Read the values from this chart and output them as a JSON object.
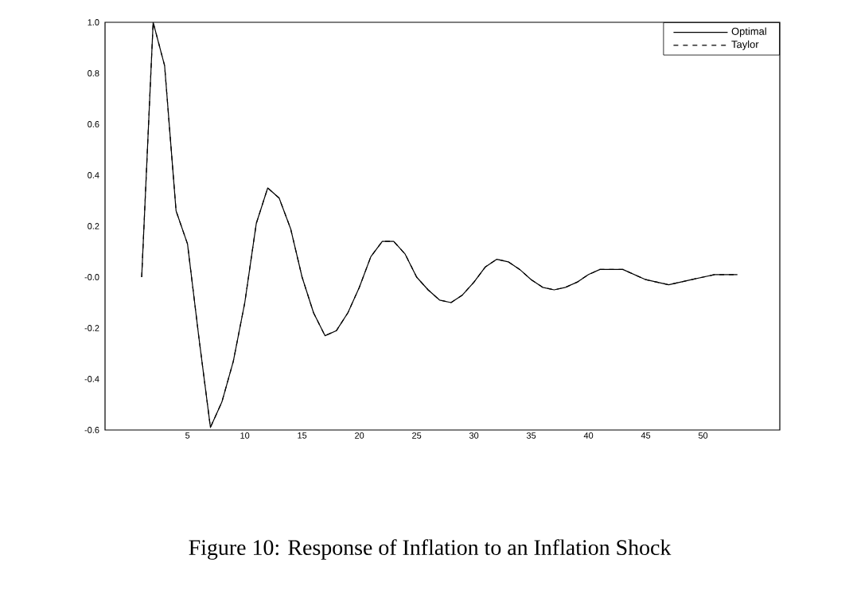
{
  "chart_data": {
    "type": "line",
    "x": [
      1,
      2,
      3,
      4,
      5,
      6,
      7,
      8,
      9,
      10,
      11,
      12,
      13,
      14,
      15,
      16,
      17,
      18,
      19,
      20,
      21,
      22,
      23,
      24,
      25,
      26,
      27,
      28,
      29,
      30,
      31,
      32,
      33,
      34,
      35,
      36,
      37,
      38,
      39,
      40,
      41,
      42,
      43,
      44,
      45,
      46,
      47,
      48,
      49,
      50,
      51,
      52,
      53
    ],
    "series": [
      {
        "name": "Optimal",
        "color": "#000000",
        "line_style": "solid",
        "values": [
          0.0,
          1.0,
          0.83,
          0.26,
          0.13,
          -0.24,
          -0.59,
          -0.49,
          -0.33,
          -0.1,
          0.21,
          0.35,
          0.31,
          0.19,
          0.0,
          -0.14,
          -0.23,
          -0.21,
          -0.14,
          -0.04,
          0.08,
          0.14,
          0.14,
          0.09,
          0.0,
          -0.05,
          -0.09,
          -0.1,
          -0.07,
          -0.02,
          0.04,
          0.07,
          0.06,
          0.03,
          -0.01,
          -0.04,
          -0.05,
          -0.04,
          -0.02,
          0.01,
          0.03,
          0.03,
          0.03,
          0.01,
          -0.01,
          -0.02,
          -0.03,
          -0.02,
          -0.01,
          0.0,
          0.01,
          0.01,
          0.01
        ]
      },
      {
        "name": "Taylor",
        "color": "#000000",
        "line_style": "dashed",
        "values": [
          0.0,
          1.0,
          0.83,
          0.26,
          0.13,
          -0.24,
          -0.59,
          -0.49,
          -0.33,
          -0.1,
          0.21,
          0.35,
          0.31,
          0.19,
          0.0,
          -0.14,
          -0.23,
          -0.21,
          -0.14,
          -0.04,
          0.08,
          0.14,
          0.14,
          0.09,
          0.0,
          -0.05,
          -0.09,
          -0.1,
          -0.07,
          -0.02,
          0.04,
          0.07,
          0.06,
          0.03,
          -0.01,
          -0.04,
          -0.05,
          -0.04,
          -0.02,
          0.01,
          0.03,
          0.03,
          0.03,
          0.01,
          -0.01,
          -0.02,
          -0.03,
          -0.02,
          -0.01,
          0.0,
          0.01,
          0.01,
          0.01
        ]
      }
    ],
    "xlim": [
      -2.2,
      56.7
    ],
    "ylim": [
      -0.6,
      1.0
    ],
    "xticks": [
      5,
      10,
      15,
      20,
      25,
      30,
      35,
      40,
      45,
      50
    ],
    "yticks": [
      {
        "value": -0.6,
        "label": "-0.6"
      },
      {
        "value": -0.4,
        "label": "-0.4"
      },
      {
        "value": -0.2,
        "label": "-0.2"
      },
      {
        "value": 0,
        "label": "-0.0"
      },
      {
        "value": 0.2,
        "label": "0.2"
      },
      {
        "value": 0.4,
        "label": "0.4"
      },
      {
        "value": 0.6,
        "label": "0.6"
      },
      {
        "value": 0.8,
        "label": "0.8"
      },
      {
        "value": 1.0,
        "label": "1.0"
      }
    ],
    "legend": "top right",
    "annotations": [
      "Figure 10: Response of Inflation to an Inflation Shock"
    ]
  }
}
